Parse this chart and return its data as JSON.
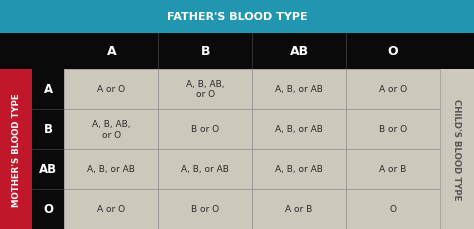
{
  "title": "FATHER'S BLOOD TYPE",
  "col_headers": [
    "A",
    "B",
    "AB",
    "O"
  ],
  "row_headers": [
    "A",
    "B",
    "AB",
    "O"
  ],
  "mother_label": "MOTHER'S BLOOD TYPE",
  "child_label": "CHILD'S BLOOD TYPE",
  "cells": [
    [
      "A or O",
      "A, B, AB,\nor O",
      "A, B, or AB",
      "A or O"
    ],
    [
      "A, B, AB,\nor O",
      "B or O",
      "A, B, or AB",
      "B or O"
    ],
    [
      "A, B, or AB",
      "A, B, or AB",
      "A, B, or AB",
      "A or B"
    ],
    [
      "A or O",
      "B or O",
      "A or B",
      "O"
    ]
  ],
  "color_header_top": "#2196b0",
  "color_row_header_bg": "#c0182a",
  "color_col_header_bg": "#0a0a0a",
  "color_cell_bg": "#cdc8bc",
  "color_cell_text": "#2a2a2a",
  "color_header_text": "#ffffff",
  "color_child_bg": "#cdc8bc",
  "color_divider": "#999999",
  "figsize": [
    4.74,
    2.3
  ],
  "dpi": 100
}
